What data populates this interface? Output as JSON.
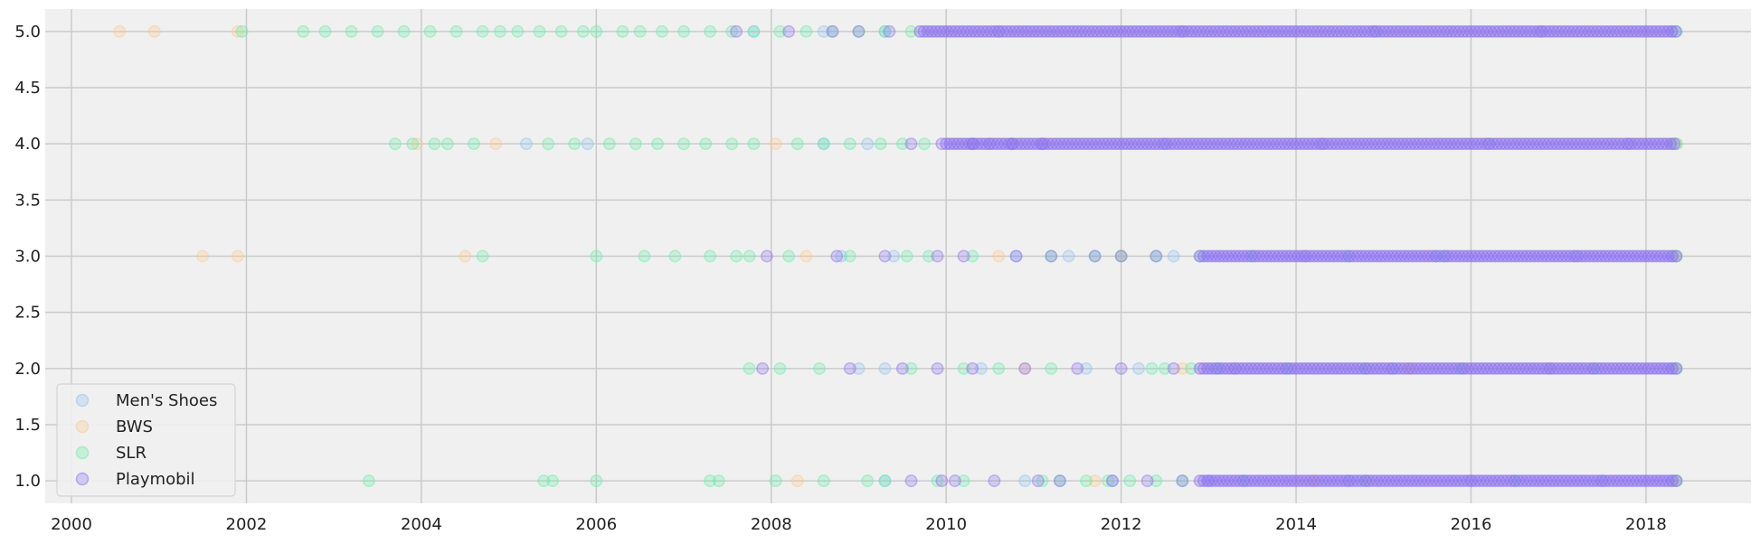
{
  "chart_data": {
    "type": "scatter",
    "title": "",
    "xlabel": "",
    "ylabel": "",
    "xlim": [
      1999.7,
      2019.2
    ],
    "ylim": [
      0.8,
      5.2
    ],
    "x_ticks": [
      2000,
      2002,
      2004,
      2006,
      2008,
      2010,
      2012,
      2014,
      2016,
      2018
    ],
    "x_tick_labels": [
      "2000",
      "2002",
      "2004",
      "2006",
      "2008",
      "2010",
      "2012",
      "2014",
      "2016",
      "2018"
    ],
    "y_ticks": [
      1.0,
      1.5,
      2.0,
      2.5,
      3.0,
      3.5,
      4.0,
      4.5,
      5.0
    ],
    "y_tick_labels": [
      "1.0",
      "1.5",
      "2.0",
      "2.5",
      "3.0",
      "3.5",
      "4.0",
      "4.5",
      "5.0"
    ],
    "grid": true,
    "legend_position": "lower-left",
    "background_color": "#f0f0f0",
    "grid_color": "#cbcbcb",
    "series": [
      {
        "name": "Men's Shoes",
        "color": "#8ec1f2",
        "points": [
          [
            2005.2,
            4
          ],
          [
            2005.9,
            4
          ],
          [
            2008.6,
            4
          ],
          [
            2009.1,
            4
          ],
          [
            2010.5,
            4
          ],
          [
            2012.5,
            4
          ],
          [
            2014.3,
            4
          ],
          [
            2016.2,
            4
          ],
          [
            2017.8,
            4
          ],
          [
            2018.3,
            4
          ],
          [
            2008.8,
            3
          ],
          [
            2009.4,
            3
          ],
          [
            2010.8,
            3
          ],
          [
            2011.4,
            3
          ],
          [
            2012.6,
            3
          ],
          [
            2014.1,
            3
          ],
          [
            2015.6,
            3
          ],
          [
            2017.2,
            3
          ],
          [
            2018.3,
            3
          ],
          [
            2009.0,
            2
          ],
          [
            2009.3,
            2
          ],
          [
            2010.4,
            2
          ],
          [
            2011.6,
            2
          ],
          [
            2012.2,
            2
          ],
          [
            2013.3,
            2
          ],
          [
            2015.1,
            2
          ],
          [
            2016.9,
            2
          ],
          [
            2018.3,
            2
          ],
          [
            2009.3,
            1
          ],
          [
            2010.9,
            1
          ],
          [
            2011.9,
            1
          ],
          [
            2013.0,
            1
          ],
          [
            2014.6,
            1
          ],
          [
            2016.0,
            1
          ],
          [
            2017.5,
            1
          ],
          [
            2018.3,
            1
          ],
          [
            2007.8,
            5
          ],
          [
            2008.6,
            5
          ],
          [
            2009.3,
            5
          ],
          [
            2010.6,
            5
          ],
          [
            2012.7,
            5
          ],
          [
            2014.9,
            5
          ],
          [
            2016.8,
            5
          ],
          [
            2018.3,
            5
          ]
        ]
      },
      {
        "name": "BWS",
        "color": "#ffc88a",
        "points": [
          [
            2000.55,
            5
          ],
          [
            2000.95,
            5
          ],
          [
            2001.9,
            5
          ],
          [
            2003.95,
            4
          ],
          [
            2004.85,
            4
          ],
          [
            2008.05,
            4
          ],
          [
            2018.35,
            4
          ],
          [
            2001.5,
            3
          ],
          [
            2001.9,
            3
          ],
          [
            2004.5,
            3
          ],
          [
            2008.4,
            3
          ],
          [
            2010.6,
            3
          ],
          [
            2012.0,
            3
          ],
          [
            2018.35,
            3
          ],
          [
            2010.9,
            2
          ],
          [
            2012.7,
            2
          ],
          [
            2015.3,
            2
          ],
          [
            2018.35,
            2
          ],
          [
            2008.3,
            1
          ],
          [
            2011.7,
            1
          ],
          [
            2014.2,
            1
          ],
          [
            2018.35,
            1
          ]
        ]
      },
      {
        "name": "SLR",
        "color": "#66eea8",
        "points": [
          [
            2001.95,
            5
          ],
          [
            2002.65,
            5
          ],
          [
            2002.9,
            5
          ],
          [
            2003.2,
            5
          ],
          [
            2003.5,
            5
          ],
          [
            2003.8,
            5
          ],
          [
            2004.1,
            5
          ],
          [
            2004.4,
            5
          ],
          [
            2004.7,
            5
          ],
          [
            2004.9,
            5
          ],
          [
            2005.1,
            5
          ],
          [
            2005.35,
            5
          ],
          [
            2005.6,
            5
          ],
          [
            2005.85,
            5
          ],
          [
            2006.0,
            5
          ],
          [
            2006.3,
            5
          ],
          [
            2006.5,
            5
          ],
          [
            2006.75,
            5
          ],
          [
            2007.0,
            5
          ],
          [
            2007.3,
            5
          ],
          [
            2007.55,
            5
          ],
          [
            2007.8,
            5
          ],
          [
            2008.1,
            5
          ],
          [
            2008.4,
            5
          ],
          [
            2008.7,
            5
          ],
          [
            2009.0,
            5
          ],
          [
            2009.3,
            5
          ],
          [
            2009.6,
            5
          ],
          [
            2018.35,
            5
          ],
          [
            2003.7,
            4
          ],
          [
            2003.9,
            4
          ],
          [
            2004.15,
            4
          ],
          [
            2004.3,
            4
          ],
          [
            2004.6,
            4
          ],
          [
            2005.45,
            4
          ],
          [
            2005.75,
            4
          ],
          [
            2006.15,
            4
          ],
          [
            2006.45,
            4
          ],
          [
            2006.7,
            4
          ],
          [
            2007.0,
            4
          ],
          [
            2007.25,
            4
          ],
          [
            2007.55,
            4
          ],
          [
            2007.8,
            4
          ],
          [
            2008.3,
            4
          ],
          [
            2008.6,
            4
          ],
          [
            2008.9,
            4
          ],
          [
            2009.25,
            4
          ],
          [
            2009.5,
            4
          ],
          [
            2009.75,
            4
          ],
          [
            2018.35,
            4
          ],
          [
            2004.7,
            3
          ],
          [
            2006.0,
            3
          ],
          [
            2006.55,
            3
          ],
          [
            2006.9,
            3
          ],
          [
            2007.3,
            3
          ],
          [
            2007.6,
            3
          ],
          [
            2007.75,
            3
          ],
          [
            2008.2,
            3
          ],
          [
            2008.9,
            3
          ],
          [
            2009.55,
            3
          ],
          [
            2009.8,
            3
          ],
          [
            2010.3,
            3
          ],
          [
            2011.2,
            3
          ],
          [
            2011.7,
            3
          ],
          [
            2012.0,
            3
          ],
          [
            2012.4,
            3
          ],
          [
            2012.9,
            3
          ],
          [
            2013.5,
            3
          ],
          [
            2014.6,
            3
          ],
          [
            2015.7,
            3
          ],
          [
            2018.35,
            3
          ],
          [
            2007.75,
            2
          ],
          [
            2008.1,
            2
          ],
          [
            2008.55,
            2
          ],
          [
            2009.6,
            2
          ],
          [
            2010.2,
            2
          ],
          [
            2010.6,
            2
          ],
          [
            2011.2,
            2
          ],
          [
            2012.35,
            2
          ],
          [
            2012.5,
            2
          ],
          [
            2012.8,
            2
          ],
          [
            2013.1,
            2
          ],
          [
            2013.9,
            2
          ],
          [
            2014.8,
            2
          ],
          [
            2015.9,
            2
          ],
          [
            2017.4,
            2
          ],
          [
            2018.35,
            2
          ],
          [
            2003.4,
            1
          ],
          [
            2005.4,
            1
          ],
          [
            2005.5,
            1
          ],
          [
            2006.0,
            1
          ],
          [
            2007.3,
            1
          ],
          [
            2007.4,
            1
          ],
          [
            2008.05,
            1
          ],
          [
            2008.6,
            1
          ],
          [
            2009.1,
            1
          ],
          [
            2009.3,
            1
          ],
          [
            2009.9,
            1
          ],
          [
            2010.2,
            1
          ],
          [
            2011.1,
            1
          ],
          [
            2011.3,
            1
          ],
          [
            2011.6,
            1
          ],
          [
            2011.85,
            1
          ],
          [
            2012.1,
            1
          ],
          [
            2012.4,
            1
          ],
          [
            2012.7,
            1
          ],
          [
            2013.4,
            1
          ],
          [
            2014.8,
            1
          ],
          [
            2016.5,
            1
          ],
          [
            2018.35,
            1
          ]
        ]
      },
      {
        "name": "Playmobil",
        "color": "#8b6fee",
        "points": [
          [
            2007.6,
            5
          ],
          [
            2008.2,
            5
          ],
          [
            2008.7,
            5
          ],
          [
            2009.0,
            5
          ],
          [
            2009.35,
            5
          ],
          [
            2009.6,
            4
          ],
          [
            2009.95,
            4
          ],
          [
            2010.3,
            4
          ],
          [
            2010.75,
            4
          ],
          [
            2011.1,
            4
          ],
          [
            2007.95,
            3
          ],
          [
            2008.75,
            3
          ],
          [
            2009.3,
            3
          ],
          [
            2009.9,
            3
          ],
          [
            2010.2,
            3
          ],
          [
            2010.8,
            3
          ],
          [
            2011.2,
            3
          ],
          [
            2011.7,
            3
          ],
          [
            2012.0,
            3
          ],
          [
            2012.4,
            3
          ],
          [
            2007.9,
            2
          ],
          [
            2008.9,
            2
          ],
          [
            2009.5,
            2
          ],
          [
            2009.9,
            2
          ],
          [
            2010.3,
            2
          ],
          [
            2010.9,
            2
          ],
          [
            2011.5,
            2
          ],
          [
            2012.0,
            2
          ],
          [
            2012.6,
            2
          ],
          [
            2009.6,
            1
          ],
          [
            2009.95,
            1
          ],
          [
            2010.1,
            1
          ],
          [
            2010.55,
            1
          ],
          [
            2011.05,
            1
          ],
          [
            2011.3,
            1
          ],
          [
            2011.9,
            1
          ],
          [
            2012.3,
            1
          ],
          [
            2012.7,
            1
          ]
        ],
        "dense_bands": [
          {
            "y": 5,
            "x_start": 2009.7,
            "x_end": 2018.35
          },
          {
            "y": 4,
            "x_start": 2010.0,
            "x_end": 2018.35
          },
          {
            "y": 3,
            "x_start": 2012.9,
            "x_end": 2018.35
          },
          {
            "y": 2,
            "x_start": 2012.9,
            "x_end": 2018.35
          },
          {
            "y": 1,
            "x_start": 2012.9,
            "x_end": 2018.35
          }
        ]
      }
    ]
  }
}
